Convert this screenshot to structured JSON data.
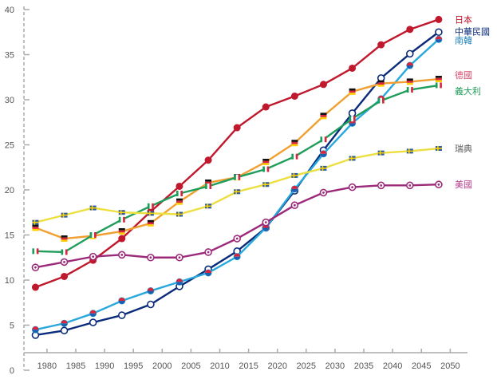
{
  "chart_data": {
    "type": "line",
    "x": [
      1978,
      1983,
      1988,
      1993,
      1998,
      2003,
      2008,
      2013,
      2018,
      2023,
      2028,
      2033,
      2038,
      2043,
      2048
    ],
    "xlim": [
      1976,
      2053
    ],
    "ylim": [
      0,
      40
    ],
    "x_ticks": [
      "1980",
      "1985",
      "1990",
      "1995",
      "2000",
      "2005",
      "2010",
      "2015",
      "2020",
      "2025",
      "2030",
      "2035",
      "2040",
      "2045",
      "2050"
    ],
    "y_ticks": [
      "0",
      "5",
      "10",
      "15",
      "20",
      "25",
      "30",
      "35",
      "40"
    ],
    "grid": false,
    "legend": "right-inline",
    "series": [
      {
        "name": "日本",
        "color": "#c0182d",
        "marker": "circle",
        "values": [
          9.2,
          10.4,
          12.2,
          14.6,
          17.6,
          20.4,
          23.3,
          26.9,
          29.2,
          30.4,
          31.7,
          33.5,
          36.1,
          37.8,
          38.9
        ]
      },
      {
        "name": "中華民國",
        "color": "#0a2a7a",
        "marker": "open-circle",
        "values": [
          3.9,
          4.4,
          5.3,
          6.1,
          7.3,
          9.3,
          11.2,
          13.2,
          15.8,
          19.9,
          24.4,
          28.5,
          32.4,
          35.1,
          37.5
        ]
      },
      {
        "name": "南韓",
        "color": "#29a8dc",
        "marker": "korea",
        "values": [
          4.5,
          5.2,
          6.3,
          7.7,
          8.8,
          9.8,
          10.8,
          12.6,
          15.8,
          20.1,
          24.0,
          27.4,
          30.1,
          33.8,
          36.7
        ]
      },
      {
        "name": "德國",
        "color": "#f0a030",
        "marker": "germany",
        "values": [
          15.8,
          14.6,
          14.9,
          15.4,
          16.3,
          18.7,
          20.8,
          21.4,
          23.1,
          25.2,
          28.2,
          30.9,
          31.8,
          32.0,
          32.3
        ]
      },
      {
        "name": "義大利",
        "color": "#1f9d5a",
        "marker": "italy",
        "values": [
          13.2,
          13.1,
          15.0,
          16.7,
          18.2,
          19.6,
          20.4,
          21.4,
          22.3,
          23.7,
          25.6,
          27.9,
          29.9,
          31.1,
          31.6
        ]
      },
      {
        "name": "瑞典",
        "color": "#ecdf40",
        "marker": "sweden",
        "values": [
          16.4,
          17.2,
          18.0,
          17.5,
          17.4,
          17.3,
          18.2,
          19.8,
          20.6,
          21.6,
          22.4,
          23.5,
          24.1,
          24.3,
          24.6
        ]
      },
      {
        "name": "美國",
        "color": "#9c2a7a",
        "marker": "usa",
        "values": [
          11.4,
          12.0,
          12.6,
          12.8,
          12.5,
          12.5,
          13.1,
          14.6,
          16.4,
          18.3,
          19.7,
          20.3,
          20.5,
          20.5,
          20.6
        ]
      }
    ]
  }
}
